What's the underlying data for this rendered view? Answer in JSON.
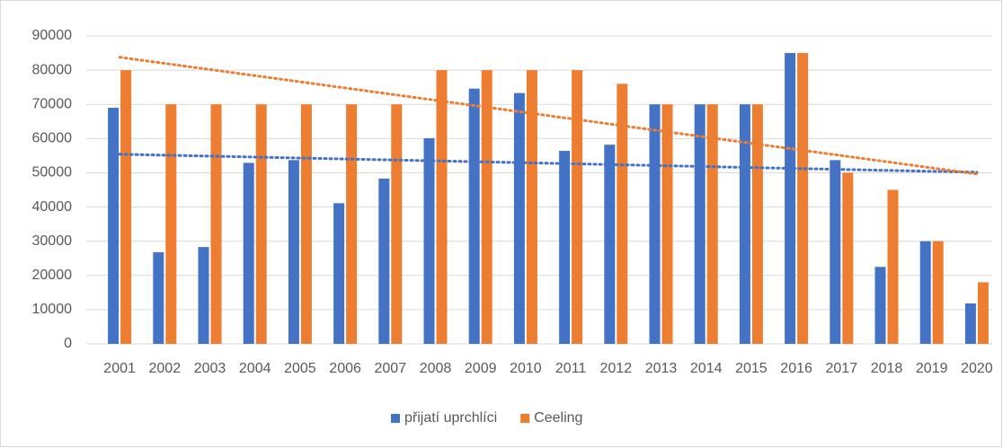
{
  "chart_data": {
    "type": "bar",
    "categories": [
      "2001",
      "2002",
      "2003",
      "2004",
      "2005",
      "2006",
      "2007",
      "2008",
      "2009",
      "2010",
      "2011",
      "2012",
      "2013",
      "2014",
      "2015",
      "2016",
      "2017",
      "2018",
      "2019",
      "2020"
    ],
    "series": [
      {
        "name": "přijatí uprchlíci",
        "color": "#4472c4",
        "values": [
          69000,
          26800,
          28300,
          52900,
          53700,
          41100,
          48300,
          60100,
          74600,
          73300,
          56400,
          58200,
          70000,
          70000,
          70000,
          85000,
          53700,
          22500,
          30000,
          11800
        ]
      },
      {
        "name": "Ceeling",
        "color": "#ed7d31",
        "values": [
          80000,
          70000,
          70000,
          70000,
          70000,
          70000,
          70000,
          80000,
          80000,
          80000,
          80000,
          76000,
          70000,
          70000,
          70000,
          85000,
          50000,
          45000,
          30000,
          18000
        ]
      }
    ],
    "ylim": [
      0,
      90000
    ],
    "yticks": [
      0,
      10000,
      20000,
      30000,
      40000,
      50000,
      60000,
      70000,
      80000,
      90000
    ],
    "grid": true,
    "trendline": true,
    "legend": "bottom"
  }
}
